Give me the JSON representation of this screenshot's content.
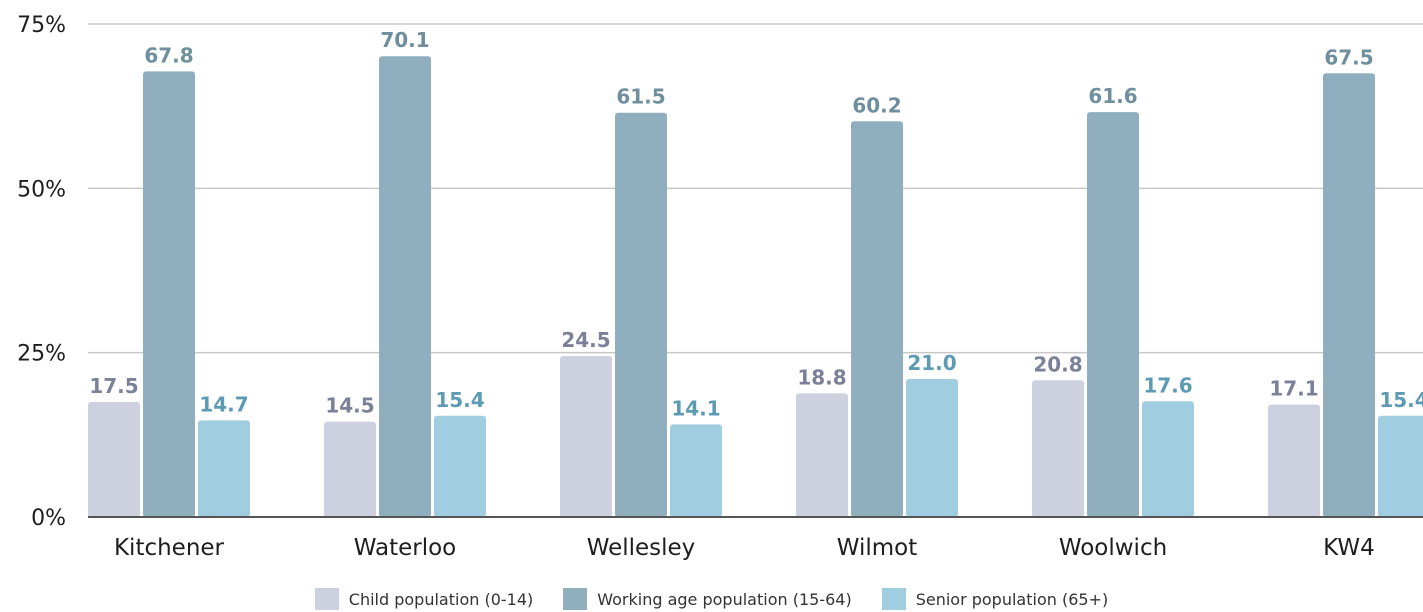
{
  "chart_data": {
    "type": "bar",
    "categories": [
      "Kitchener",
      "Waterloo",
      "Wellesley",
      "Wilmot",
      "Woolwich",
      "KW4"
    ],
    "series": [
      {
        "name": "Child population (0-14)",
        "values": [
          17.5,
          14.5,
          24.5,
          18.8,
          20.8,
          17.1
        ],
        "color": "#cdd0df",
        "label_color": "#7b8199"
      },
      {
        "name": "Working age population (15-64)",
        "values": [
          67.8,
          70.1,
          61.5,
          60.2,
          61.6,
          67.5
        ],
        "color": "#8fafbe",
        "label_color": "#6f8f9e"
      },
      {
        "name": "Senior population (65+)",
        "values": [
          14.7,
          15.4,
          14.1,
          21.0,
          17.6,
          15.4
        ],
        "color": "#a0cde0",
        "label_color": "#5d9bb5"
      }
    ],
    "yticks": [
      {
        "value": 0,
        "label": "0%"
      },
      {
        "value": 25,
        "label": "25%"
      },
      {
        "value": 50,
        "label": "50%"
      },
      {
        "value": 75,
        "label": "75%"
      }
    ],
    "ylim": [
      0,
      75
    ],
    "grid": true,
    "legend_position": "bottom-center",
    "xlabel": "",
    "ylabel": ""
  }
}
